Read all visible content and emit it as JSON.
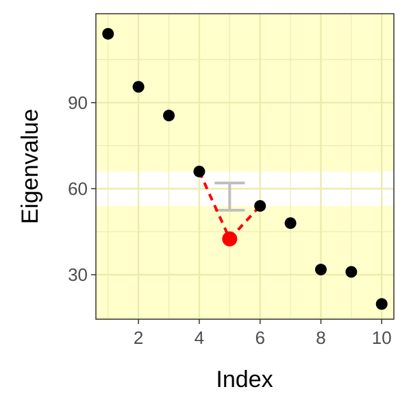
{
  "chart_data": {
    "type": "scatter",
    "title": "",
    "xlabel": "Index",
    "ylabel": "Eigenvalue",
    "xlim": [
      0.6,
      10.4
    ],
    "ylim": [
      14.5,
      121
    ],
    "x_ticks": [
      2,
      4,
      6,
      8,
      10
    ],
    "y_ticks": [
      30,
      60,
      90
    ],
    "grid": true,
    "legend": "none",
    "colors": {
      "panel_background": "#ffffcc",
      "band": "#ffffff",
      "point": "#000000",
      "highlight": "#ff0000",
      "interval": "#bebebe",
      "border": "#333333"
    },
    "band": {
      "y_min": 54,
      "y_max": 66
    },
    "series": [
      {
        "x": [
          1,
          2,
          3,
          4,
          5,
          6,
          7,
          8,
          9,
          10
        ],
        "y": [
          114,
          95.5,
          85.5,
          66,
          42.5,
          54,
          48,
          31.8,
          31,
          19.8
        ]
      }
    ],
    "highlight": {
      "x": 5,
      "y": 42.5
    },
    "interval": {
      "x": 5,
      "y_min": 52.5,
      "y_max": 62
    },
    "connector": [
      {
        "x": 4,
        "y": 66
      },
      {
        "x": 5,
        "y": 42.5
      },
      {
        "x": 6,
        "y": 54
      }
    ]
  }
}
